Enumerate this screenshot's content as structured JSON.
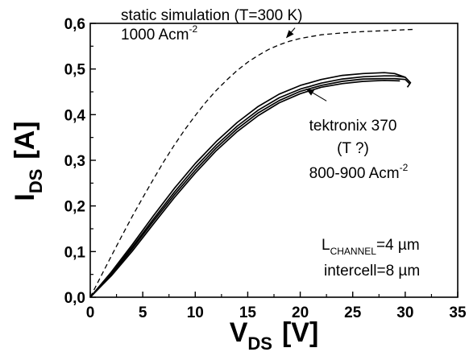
{
  "chart_data": {
    "type": "line",
    "title": "",
    "xlabel": {
      "main": "V",
      "sub": "DS",
      "unit": "[V]"
    },
    "ylabel": {
      "main": "I",
      "sub": "DS",
      "unit": "[A]"
    },
    "xlim": [
      0,
      35
    ],
    "ylim": [
      0,
      0.6
    ],
    "xticks": [
      0,
      5,
      10,
      15,
      20,
      25,
      30,
      35
    ],
    "yticks": [
      0.0,
      0.1,
      0.2,
      0.3,
      0.4,
      0.5,
      0.6
    ],
    "xtick_labels": [
      "0",
      "5",
      "10",
      "15",
      "20",
      "25",
      "30",
      "35"
    ],
    "ytick_labels": [
      "0,0",
      "0,1",
      "0,2",
      "0,3",
      "0,4",
      "0,5",
      "0,6"
    ],
    "grid": false,
    "legend": "none",
    "series": [
      {
        "style": "dashed",
        "x": [
          0,
          1,
          2,
          3,
          4,
          5,
          6,
          7,
          8,
          9,
          10,
          11,
          12,
          13,
          14,
          15,
          16,
          17,
          18,
          19,
          20,
          22,
          24,
          26,
          28,
          30,
          31
        ],
        "y": [
          0,
          0.045,
          0.09,
          0.134,
          0.177,
          0.218,
          0.258,
          0.297,
          0.333,
          0.367,
          0.398,
          0.427,
          0.453,
          0.476,
          0.497,
          0.515,
          0.53,
          0.543,
          0.553,
          0.561,
          0.567,
          0.575,
          0.579,
          0.582,
          0.584,
          0.586,
          0.587
        ]
      },
      {
        "style": "solid",
        "x": [
          0,
          2,
          4,
          6,
          8,
          10,
          12,
          14,
          16,
          18,
          20,
          22,
          24,
          26,
          28,
          29,
          30,
          30.5,
          30.2
        ],
        "y": [
          0,
          0.055,
          0.115,
          0.178,
          0.238,
          0.293,
          0.341,
          0.383,
          0.418,
          0.445,
          0.464,
          0.477,
          0.486,
          0.49,
          0.492,
          0.49,
          0.482,
          0.47,
          0.46
        ]
      },
      {
        "style": "solid",
        "x": [
          0,
          2,
          4,
          6,
          8,
          10,
          12,
          14,
          16,
          18,
          20,
          22,
          24,
          26,
          28,
          29,
          30
        ],
        "y": [
          0,
          0.052,
          0.11,
          0.171,
          0.23,
          0.285,
          0.333,
          0.375,
          0.41,
          0.437,
          0.456,
          0.469,
          0.478,
          0.483,
          0.485,
          0.485,
          0.482
        ]
      },
      {
        "style": "solid",
        "x": [
          0,
          2,
          4,
          6,
          8,
          10,
          12,
          14,
          16,
          18,
          20,
          22,
          24,
          26,
          28,
          29,
          30,
          30.4
        ],
        "y": [
          0,
          0.05,
          0.106,
          0.166,
          0.224,
          0.278,
          0.327,
          0.369,
          0.404,
          0.431,
          0.451,
          0.464,
          0.473,
          0.478,
          0.479,
          0.479,
          0.477,
          0.468
        ]
      },
      {
        "style": "solid",
        "x": [
          0,
          2,
          4,
          6,
          8,
          10,
          12,
          14,
          16,
          18,
          20,
          22,
          24,
          26,
          28,
          29.5
        ],
        "y": [
          0,
          0.047,
          0.101,
          0.16,
          0.218,
          0.272,
          0.321,
          0.363,
          0.398,
          0.426,
          0.446,
          0.46,
          0.468,
          0.473,
          0.475,
          0.474
        ]
      }
    ],
    "annotations": {
      "static": {
        "line1": "static simulation (T=300 K)",
        "line2_main": "1000 Acm",
        "line2_sup": "-2",
        "arrow_from": [
          19.5,
          0.59
        ],
        "arrow_to": [
          18.7,
          0.569
        ]
      },
      "tektronix": {
        "line1": "tektronix 370",
        "line2": "(T ?)",
        "line3_main": "800-900 Acm",
        "line3_sup": "-2",
        "arrow_from": [
          22.5,
          0.43
        ],
        "arrow_to": [
          20.6,
          0.456
        ]
      },
      "geometry": {
        "line1_main": "L",
        "line1_sub": "CHANNEL",
        "line1_rest": "=4 µm",
        "line2": "intercell=8 µm"
      }
    }
  }
}
